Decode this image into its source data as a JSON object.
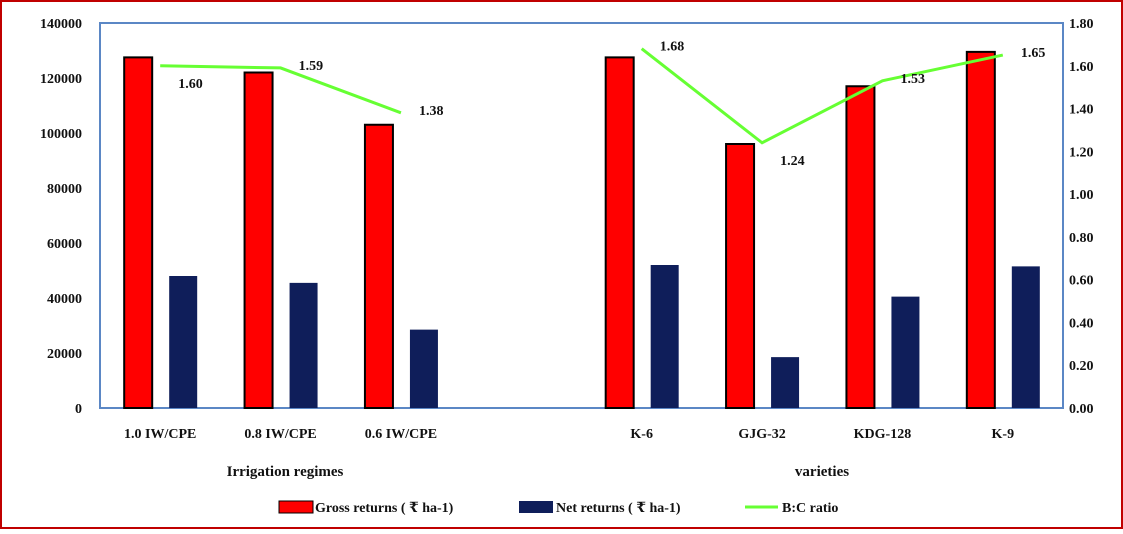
{
  "colors": {
    "frame": "#c00000",
    "plot_border": "#5b87c5",
    "gross": "#ff0000",
    "gross_edge": "#000000",
    "net": "#0f1e5a",
    "bc_line": "#66ff33"
  },
  "chart_data": {
    "type": "bar",
    "categories": [
      "1.0 IW/CPE",
      "0.8 IW/CPE",
      "0.6 IW/CPE",
      "",
      "K-6",
      "GJG-32",
      "KDG-128",
      "K-9"
    ],
    "group_labels": [
      "Irrigation regimes",
      "varieties"
    ],
    "y_left": {
      "ylim": [
        0,
        140000
      ],
      "ticks": [
        "0",
        "20000",
        "40000",
        "60000",
        "80000",
        "100000",
        "120000",
        "140000"
      ]
    },
    "y_right": {
      "ylim": [
        0,
        1.8
      ],
      "ticks": [
        "0.00",
        "0.20",
        "0.40",
        "0.60",
        "0.80",
        "1.00",
        "1.20",
        "1.40",
        "1.60",
        "1.80"
      ]
    },
    "series": [
      {
        "name": "Gross returns ( ₹ ha-1)",
        "type": "bar",
        "axis": "left",
        "values": [
          127500,
          122000,
          103000,
          null,
          127500,
          96000,
          117000,
          129500
        ]
      },
      {
        "name": "Net returns ( ₹ ha-1)",
        "type": "bar",
        "axis": "left",
        "values": [
          48000,
          45500,
          28500,
          null,
          52000,
          18500,
          40500,
          51500
        ]
      },
      {
        "name": "B:C ratio",
        "type": "line",
        "axis": "right",
        "values": [
          1.6,
          1.59,
          1.38,
          null,
          1.68,
          1.24,
          1.53,
          1.65
        ],
        "labels": [
          "1.60",
          "1.59",
          "1.38",
          "",
          "1.68",
          "1.24",
          "1.53",
          "1.65"
        ]
      }
    ],
    "legend_position": "bottom",
    "grid": false
  }
}
